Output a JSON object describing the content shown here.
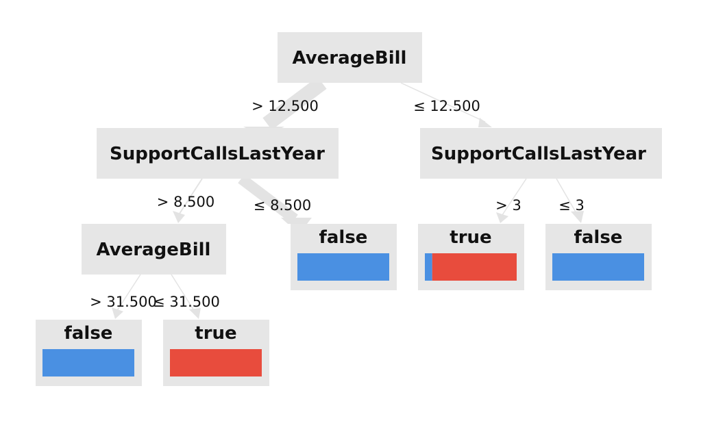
{
  "colors": {
    "class_false": "#4a90e2",
    "class_true": "#e84c3d",
    "node_fill": "#e6e6e6",
    "edge": "#e3e3e3"
  },
  "nodes": {
    "root": {
      "label": "AverageBill"
    },
    "left_split": {
      "label": "SupportCallsLastYear"
    },
    "right_split": {
      "label": "SupportCallsLastYear"
    },
    "left_left_split": {
      "label": "AverageBill"
    },
    "leaf_ll_gt": {
      "label": "false",
      "share_false": 1.0,
      "share_true": 0.0
    },
    "leaf_ll_le": {
      "label": "true",
      "share_false": 0.0,
      "share_true": 1.0
    },
    "leaf_l_le": {
      "label": "false",
      "share_false": 1.0,
      "share_true": 0.0
    },
    "leaf_r_gt": {
      "label": "true",
      "share_false": 0.08,
      "share_true": 0.92
    },
    "leaf_r_le": {
      "label": "false",
      "share_false": 1.0,
      "share_true": 0.0
    }
  },
  "edges": {
    "root_left": {
      "label": "> 12.500"
    },
    "root_right": {
      "label": "≤ 12.500"
    },
    "left_gt": {
      "label": "> 8.500"
    },
    "left_le": {
      "label": "≤ 8.500"
    },
    "ll_gt": {
      "label": "> 31.500"
    },
    "ll_le": {
      "label": "≤ 31.500"
    },
    "right_gt": {
      "label": "> 3"
    },
    "right_le": {
      "label": "≤ 3"
    }
  }
}
